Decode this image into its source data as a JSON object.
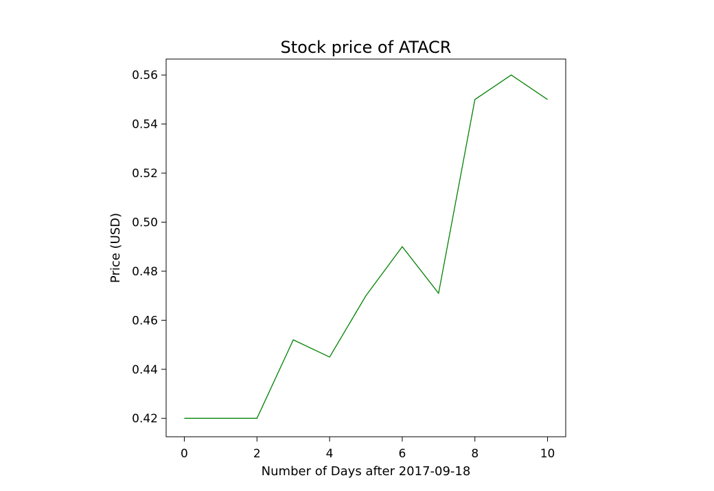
{
  "chart_data": {
    "type": "line",
    "title": "Stock price of ATACR",
    "xlabel": "Number of Days after 2017-09-18",
    "ylabel": "Price (USD)",
    "xlim": [
      -0.5,
      10.5
    ],
    "ylim": [
      0.4125,
      0.5665
    ],
    "xticks": [
      0,
      2,
      4,
      6,
      8,
      10
    ],
    "yticks": [
      0.42,
      0.44,
      0.46,
      0.48,
      0.5,
      0.52,
      0.54,
      0.56
    ],
    "ytick_labels": [
      "0.42",
      "0.44",
      "0.46",
      "0.48",
      "0.50",
      "0.52",
      "0.54",
      "0.56"
    ],
    "grid": false,
    "legend": false,
    "series": [
      {
        "color": "#008000",
        "x": [
          0,
          1,
          2,
          3,
          4,
          5,
          6,
          7,
          8,
          9,
          10
        ],
        "y": [
          0.42,
          0.42,
          0.42,
          0.452,
          0.445,
          0.47,
          0.49,
          0.471,
          0.55,
          0.56,
          0.55
        ]
      }
    ]
  }
}
